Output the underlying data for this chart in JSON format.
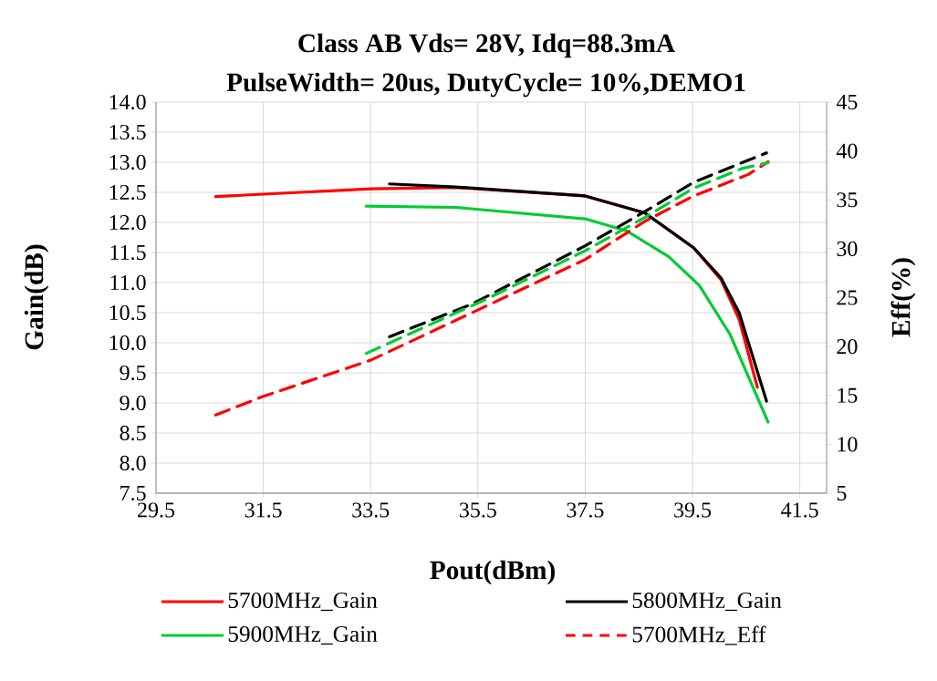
{
  "chart_data": {
    "type": "line",
    "title": "Class AB Vds= 28V, Idq=88.3mA",
    "subtitle": "PulseWidth= 20us, DutyCycle= 10%,DEMO1",
    "xlabel": "Pout(dBm)",
    "ylabel": "Gain(dB)",
    "y2label": "Eff(%)",
    "xlim": [
      29.5,
      42.0
    ],
    "xticks": [
      29.5,
      31.5,
      33.5,
      35.5,
      37.5,
      39.5,
      41.5
    ],
    "ylim": [
      7.5,
      14.0
    ],
    "yticks": [
      {
        "value": 7.5,
        "label": "7.5"
      },
      {
        "value": 8.0,
        "label": "8.0"
      },
      {
        "value": 8.5,
        "label": "8.5"
      },
      {
        "value": 9.0,
        "label": "9.0"
      },
      {
        "value": 9.5,
        "label": "9.5"
      },
      {
        "value": 10.0,
        "label": "10.0"
      },
      {
        "value": 10.5,
        "label": "10.5"
      },
      {
        "value": 11.0,
        "label": "11.0"
      },
      {
        "value": 11.5,
        "label": "11.5"
      },
      {
        "value": 12.0,
        "label": "12.0"
      },
      {
        "value": 12.5,
        "label": "12.5"
      },
      {
        "value": 13.0,
        "label": "13.0"
      },
      {
        "value": 13.5,
        "label": "13.5"
      },
      {
        "value": 14.0,
        "label": "14.0"
      }
    ],
    "y2lim": [
      5,
      45
    ],
    "y2ticks": [
      5,
      10,
      15,
      20,
      25,
      30,
      35,
      40,
      45
    ],
    "grid": true,
    "legend": "bottom",
    "series": [
      {
        "name": "5700MHz_Gain",
        "color": "#ff0000",
        "line_style": "solid",
        "x": [
          30.61,
          31.5,
          33.5,
          35.09,
          37.5,
          38.61,
          39.52,
          40.03,
          40.37,
          40.71
        ],
        "values": [
          12.43,
          12.47,
          12.56,
          12.58,
          12.44,
          12.16,
          11.58,
          11.05,
          10.39,
          9.26
        ]
      },
      {
        "name": "5800MHz_Gain",
        "color": "#000000",
        "line_style": "solid",
        "x": [
          33.85,
          35.09,
          37.5,
          38.61,
          39.52,
          40.03,
          40.37,
          40.88
        ],
        "values": [
          12.64,
          12.59,
          12.44,
          12.16,
          11.58,
          11.08,
          10.5,
          9.03
        ]
      },
      {
        "name": "5900MHz_Gain",
        "color": "#00cc33",
        "line_style": "solid",
        "x": [
          33.42,
          35.09,
          37.5,
          38.27,
          39.06,
          39.63,
          40.2,
          40.91
        ],
        "values": [
          12.27,
          12.25,
          12.06,
          11.86,
          11.43,
          10.95,
          10.14,
          8.68
        ]
      },
      {
        "name": "5700MHz_Eff",
        "color": "#ff0000",
        "line_style": "dashed",
        "axis": "y2",
        "x": [
          30.61,
          31.5,
          33.5,
          35.6,
          37.5,
          38.61,
          39.52,
          40.54,
          40.77,
          40.91
        ],
        "values": [
          13.0,
          14.9,
          18.6,
          24.0,
          28.9,
          32.8,
          35.4,
          37.6,
          38.4,
          38.9
        ]
      },
      {
        "color": "#000000",
        "line_style": "dashed",
        "axis": "y2",
        "x": [
          33.85,
          35.37,
          37.5,
          38.61,
          39.52,
          40.42,
          40.88
        ],
        "values": [
          21.0,
          24.3,
          30.3,
          33.8,
          36.8,
          38.8,
          39.8
        ]
      },
      {
        "color": "#00cc33",
        "line_style": "dashed",
        "axis": "y2",
        "x": [
          33.42,
          35.6,
          37.5,
          38.61,
          39.52,
          40.42,
          40.91
        ],
        "values": [
          19.3,
          24.7,
          29.8,
          33.2,
          36.2,
          38.2,
          38.8
        ]
      }
    ]
  }
}
